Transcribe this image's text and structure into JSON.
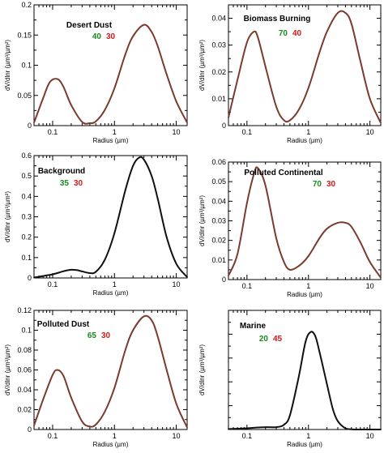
{
  "colors": {
    "curve_brown": "#7a3b2e",
    "curve_black": "#111111",
    "num_green": "#1a8a1a",
    "num_red": "#d11a1a"
  },
  "chart_data": [
    {
      "type": "line",
      "title": "Desert Dust",
      "num1": "40",
      "num2": "30",
      "xlabel": "Radius (µm)",
      "ylabel": "dV/dlnr (µm³/µm²)",
      "xscale": "log",
      "xlim": [
        0.05,
        15
      ],
      "ylim": [
        0,
        0.2
      ],
      "xticks": [
        0.1,
        1,
        10
      ],
      "yticks": [
        0,
        0.05,
        0.1,
        0.15,
        0.2
      ],
      "ytick_labels": [
        "0",
        "0.05",
        "0.1",
        "0.15",
        "0.2"
      ],
      "x": [
        0.05,
        0.07,
        0.09,
        0.12,
        0.15,
        0.2,
        0.3,
        0.4,
        0.5,
        0.7,
        1,
        1.5,
        2,
        3,
        4,
        5,
        7,
        10,
        15
      ],
      "y": [
        0.005,
        0.045,
        0.072,
        0.077,
        0.064,
        0.034,
        0.006,
        0.004,
        0.007,
        0.026,
        0.062,
        0.118,
        0.148,
        0.167,
        0.155,
        0.132,
        0.085,
        0.04,
        0.005
      ],
      "color": "#7a3b2e"
    },
    {
      "type": "line",
      "title": "Biomass Burning",
      "num1": "70",
      "num2": "40",
      "xlabel": "Radius (µm)",
      "ylabel": "dV/dlnr (µm³/µm²)",
      "xscale": "log",
      "xlim": [
        0.05,
        15
      ],
      "ylim": [
        0,
        0.045
      ],
      "xticks": [
        0.1,
        1,
        10
      ],
      "yticks": [
        0,
        0.01,
        0.02,
        0.03,
        0.04
      ],
      "ytick_labels": [
        "0",
        "0.01",
        "0.02",
        "0.03",
        "0.04"
      ],
      "x": [
        0.05,
        0.07,
        0.1,
        0.13,
        0.15,
        0.2,
        0.3,
        0.4,
        0.5,
        0.7,
        1,
        1.5,
        2,
        3,
        4,
        5,
        7,
        10,
        15
      ],
      "y": [
        0.003,
        0.017,
        0.031,
        0.035,
        0.033,
        0.022,
        0.007,
        0.002,
        0.002,
        0.006,
        0.014,
        0.027,
        0.035,
        0.042,
        0.042,
        0.038,
        0.024,
        0.01,
        0.001
      ],
      "color": "#7a3b2e"
    },
    {
      "type": "line",
      "title": "Background",
      "num1": "35",
      "num2": "30",
      "xlabel": "Radius (µm)",
      "ylabel": "dV/dlnr (µm³/µm²)",
      "xscale": "log",
      "xlim": [
        0.05,
        15
      ],
      "ylim": [
        0,
        0.6
      ],
      "xticks": [
        0.1,
        1,
        10
      ],
      "yticks": [
        0,
        0.1,
        0.2,
        0.3,
        0.4,
        0.5,
        0.6
      ],
      "ytick_labels": [
        "0",
        "0.1",
        "0.2",
        "0.3",
        "0.4",
        "0.5",
        "0.6"
      ],
      "x": [
        0.05,
        0.1,
        0.15,
        0.2,
        0.25,
        0.3,
        0.4,
        0.5,
        0.7,
        1,
        1.5,
        2,
        2.5,
        3,
        4,
        5,
        7,
        10,
        15
      ],
      "y": [
        0.002,
        0.018,
        0.033,
        0.04,
        0.038,
        0.032,
        0.024,
        0.03,
        0.09,
        0.22,
        0.43,
        0.55,
        0.59,
        0.58,
        0.5,
        0.39,
        0.2,
        0.07,
        0.004
      ],
      "color": "#111111"
    },
    {
      "type": "line",
      "title": "Polluted Continental",
      "num1": "70",
      "num2": "30",
      "xlabel": "Radius (µm)",
      "ylabel": "dV/dlnr (µm³/µm²)",
      "xscale": "log",
      "xlim": [
        0.05,
        15
      ],
      "ylim": [
        0,
        0.06
      ],
      "xticks": [
        0.1,
        1,
        10
      ],
      "yticks": [
        0,
        0.01,
        0.02,
        0.03,
        0.04,
        0.05,
        0.06
      ],
      "ytick_labels": [
        "0",
        "0.01",
        "0.02",
        "0.03",
        "0.04",
        "0.05",
        "0.06"
      ],
      "x": [
        0.05,
        0.07,
        0.1,
        0.13,
        0.15,
        0.2,
        0.3,
        0.4,
        0.5,
        0.7,
        1,
        1.5,
        2,
        3,
        4,
        5,
        7,
        10,
        15
      ],
      "y": [
        0.002,
        0.013,
        0.039,
        0.054,
        0.057,
        0.048,
        0.021,
        0.009,
        0.005,
        0.007,
        0.012,
        0.021,
        0.026,
        0.029,
        0.029,
        0.027,
        0.019,
        0.009,
        0.001
      ],
      "color": "#7a3b2e"
    },
    {
      "type": "line",
      "title": "Polluted Dust",
      "num1": "65",
      "num2": "30",
      "xlabel": "Radius (µm)",
      "ylabel": "dV/dlnr (µm³/µm²)",
      "xscale": "log",
      "xlim": [
        0.05,
        15
      ],
      "ylim": [
        0,
        0.12
      ],
      "xticks": [
        0.1,
        1,
        10
      ],
      "yticks": [
        0,
        0.02,
        0.04,
        0.06,
        0.08,
        0.1,
        0.12
      ],
      "ytick_labels": [
        "0",
        "0.02",
        "0.04",
        "0.06",
        "0.08",
        "0.1",
        "0.12"
      ],
      "x": [
        0.05,
        0.07,
        0.1,
        0.12,
        0.15,
        0.2,
        0.3,
        0.4,
        0.5,
        0.7,
        1,
        1.5,
        2,
        3,
        4,
        5,
        7,
        10,
        15
      ],
      "y": [
        0.004,
        0.03,
        0.055,
        0.06,
        0.054,
        0.032,
        0.008,
        0.003,
        0.005,
        0.018,
        0.042,
        0.08,
        0.1,
        0.114,
        0.11,
        0.094,
        0.06,
        0.026,
        0.002
      ],
      "color": "#7a3b2e"
    },
    {
      "type": "line",
      "title": "Marine",
      "num1": "20",
      "num2": "45",
      "xlabel": "Radius (µm)",
      "ylabel": "dV/dlnr (µm³/µm²)",
      "xscale": "log",
      "xlim": [
        0.05,
        15
      ],
      "ylim": [
        0,
        1
      ],
      "xticks": [
        0.1,
        1,
        10
      ],
      "yticks": [
        0,
        0.2,
        0.4,
        0.6,
        0.8,
        1
      ],
      "ytick_labels": [
        "",
        "",
        "",
        "",
        "",
        ""
      ],
      "x": [
        0.05,
        0.1,
        0.15,
        0.2,
        0.3,
        0.4,
        0.5,
        0.7,
        0.9,
        1.1,
        1.3,
        1.5,
        2,
        2.5,
        3,
        4,
        5,
        7,
        10,
        15
      ],
      "y": [
        0.004,
        0.01,
        0.017,
        0.02,
        0.02,
        0.04,
        0.12,
        0.45,
        0.74,
        0.82,
        0.78,
        0.66,
        0.38,
        0.17,
        0.07,
        0.01,
        0.002,
        0,
        0,
        0
      ],
      "color": "#111111"
    }
  ]
}
